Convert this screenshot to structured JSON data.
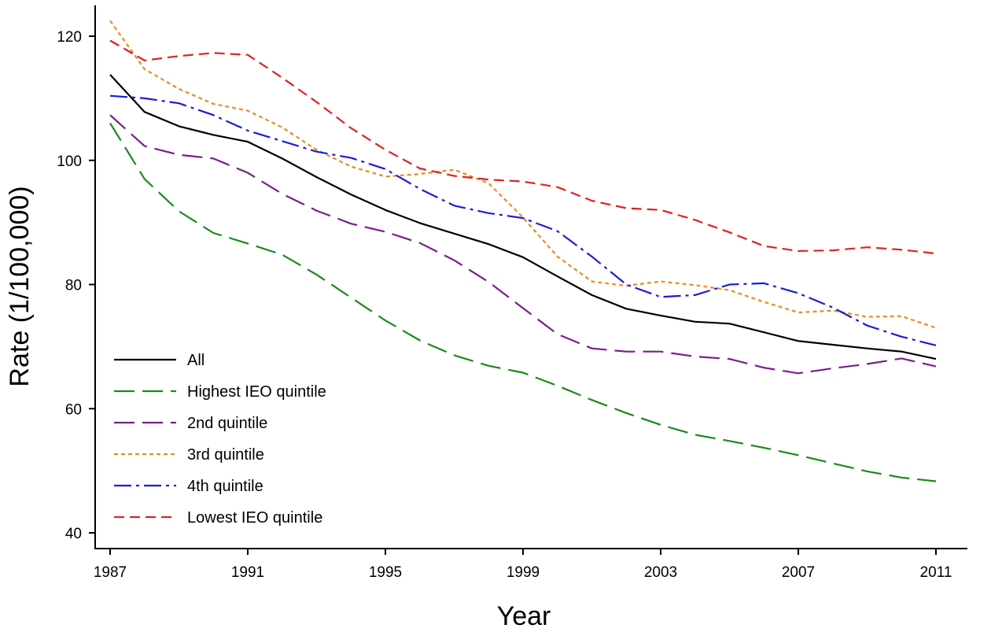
{
  "chart_data": {
    "type": "line",
    "title": "",
    "xlabel": "Year",
    "ylabel": "Rate (1/100,000)",
    "xlim": [
      1987,
      2011
    ],
    "ylim": [
      40,
      125
    ],
    "x_ticks": [
      1987,
      1991,
      1995,
      1999,
      2003,
      2007,
      2011
    ],
    "y_ticks": [
      40,
      60,
      80,
      100,
      120
    ],
    "grid": false,
    "legend_position": "bottom-left",
    "x": [
      1987,
      1988,
      1989,
      1990,
      1991,
      1992,
      1993,
      1994,
      1995,
      1996,
      1997,
      1998,
      1999,
      2000,
      2001,
      2002,
      2003,
      2004,
      2005,
      2006,
      2007,
      2008,
      2009,
      2010,
      2011
    ],
    "series": [
      {
        "name": "All",
        "color": "#000000",
        "dash": "solid",
        "values": [
          113.8,
          107.8,
          105.5,
          104.1,
          103.0,
          100.3,
          97.3,
          94.5,
          92.0,
          89.9,
          88.2,
          86.5,
          84.4,
          81.3,
          78.3,
          76.1,
          75.0,
          74.0,
          73.7,
          72.3,
          70.9,
          70.3,
          69.7,
          69.2,
          68.0
        ]
      },
      {
        "name": "Highest IEO quintile",
        "color": "#1a8a1a",
        "dash": "long-dash",
        "values": [
          106.0,
          97.0,
          91.8,
          88.3,
          86.6,
          84.8,
          81.6,
          77.9,
          74.2,
          71.0,
          68.6,
          66.9,
          65.8,
          63.7,
          61.4,
          59.3,
          57.4,
          55.8,
          54.8,
          53.7,
          52.5,
          51.2,
          49.9,
          48.9,
          48.3
        ]
      },
      {
        "name": "2nd quintile",
        "color": "#7a1f8a",
        "dash": "long-dash",
        "values": [
          107.3,
          102.3,
          100.9,
          100.3,
          98.0,
          94.6,
          91.9,
          89.8,
          88.5,
          86.7,
          83.9,
          80.4,
          76.2,
          72.0,
          69.7,
          69.2,
          69.2,
          68.4,
          68.0,
          66.6,
          65.7,
          66.5,
          67.2,
          68.1,
          66.8
        ]
      },
      {
        "name": "3rd quintile",
        "color": "#f08a1e",
        "dash": "short-dash",
        "values": [
          122.5,
          114.7,
          111.5,
          109.1,
          108.0,
          105.3,
          101.7,
          99.0,
          97.4,
          97.8,
          98.5,
          96.3,
          90.8,
          84.5,
          80.5,
          79.8,
          80.5,
          79.9,
          79.1,
          77.2,
          75.5,
          75.8,
          74.8,
          74.9,
          73.0
        ]
      },
      {
        "name": "4th quintile",
        "color": "#1c1cde",
        "dash": "dash-dot",
        "values": [
          110.4,
          110.0,
          109.2,
          107.3,
          104.8,
          103.1,
          101.4,
          100.4,
          98.6,
          95.4,
          92.7,
          91.5,
          90.7,
          88.6,
          84.5,
          80.0,
          78.0,
          78.3,
          80.0,
          80.2,
          78.6,
          76.3,
          73.4,
          71.6,
          70.2
        ]
      },
      {
        "name": "Lowest IEO quintile",
        "color": "#e42020",
        "dash": "medium-dash",
        "values": [
          119.3,
          116.1,
          116.8,
          117.3,
          117.0,
          113.3,
          109.4,
          105.2,
          101.7,
          98.7,
          97.5,
          96.9,
          96.6,
          95.7,
          93.5,
          92.3,
          92.0,
          90.4,
          88.4,
          86.2,
          85.4,
          85.5,
          86.0,
          85.6,
          85.0
        ]
      }
    ]
  }
}
